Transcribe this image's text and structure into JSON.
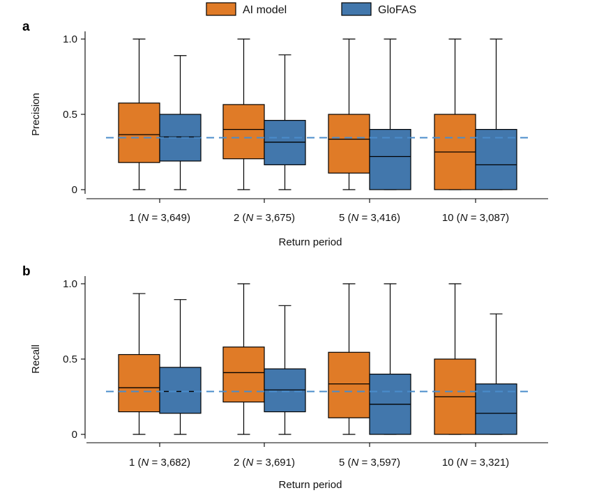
{
  "legend": {
    "items": [
      {
        "label": "AI model",
        "color": "#E07B27"
      },
      {
        "label": "GloFAS",
        "color": "#4277AC"
      }
    ]
  },
  "colors": {
    "ai": "#E07B27",
    "glofas": "#4277AC",
    "reference": "#4A8CCB"
  },
  "chart_data": [
    {
      "type": "box",
      "panel": "a",
      "ylabel": "Precision",
      "xlabel": "Return period",
      "ylim": [
        0,
        1.0
      ],
      "yticks": [
        "0",
        "0.5",
        "1.0"
      ],
      "ytick_values": [
        0,
        0.5,
        1.0
      ],
      "reference_line": 0.345,
      "categories": [
        "1 (N = 3,649)",
        "2 (N = 3,675)",
        "5 (N = 3,416)",
        "10 (N = 3,087)"
      ],
      "category_parts": [
        {
          "pre": "1 (",
          "n": "N",
          "post": " = 3,649)"
        },
        {
          "pre": "2 (",
          "n": "N",
          "post": " = 3,675)"
        },
        {
          "pre": "5 (",
          "n": "N",
          "post": " = 3,416)"
        },
        {
          "pre": "10 (",
          "n": "N",
          "post": " = 3,087)"
        }
      ],
      "series": [
        {
          "name": "AI model",
          "boxes": [
            {
              "whislo": 0,
              "q1": 0.18,
              "med": 0.365,
              "q3": 0.575,
              "whishi": 1.0
            },
            {
              "whislo": 0,
              "q1": 0.205,
              "med": 0.4,
              "q3": 0.565,
              "whishi": 1.0
            },
            {
              "whislo": 0,
              "q1": 0.11,
              "med": 0.335,
              "q3": 0.5,
              "whishi": 1.0
            },
            {
              "whislo": 0,
              "q1": 0,
              "med": 0.25,
              "q3": 0.5,
              "whishi": 1.0
            }
          ]
        },
        {
          "name": "GloFAS",
          "boxes": [
            {
              "whislo": 0,
              "q1": 0.19,
              "med": 0.35,
              "q3": 0.5,
              "whishi": 0.89
            },
            {
              "whislo": 0,
              "q1": 0.165,
              "med": 0.315,
              "q3": 0.46,
              "whishi": 0.895
            },
            {
              "whislo": 0,
              "q1": 0,
              "med": 0.22,
              "q3": 0.4,
              "whishi": 1.0
            },
            {
              "whislo": 0,
              "q1": 0,
              "med": 0.165,
              "q3": 0.4,
              "whishi": 1.0
            }
          ]
        }
      ]
    },
    {
      "type": "box",
      "panel": "b",
      "ylabel": "Recall",
      "xlabel": "Return period",
      "ylim": [
        0,
        1.0
      ],
      "yticks": [
        "0",
        "0.5",
        "1.0"
      ],
      "ytick_values": [
        0,
        0.5,
        1.0
      ],
      "reference_line": 0.285,
      "categories": [
        "1 (N = 3,682)",
        "2 (N = 3,691)",
        "5 (N = 3,597)",
        "10 (N = 3,321)"
      ],
      "category_parts": [
        {
          "pre": "1 (",
          "n": "N",
          "post": " = 3,682)"
        },
        {
          "pre": "2 (",
          "n": "N",
          "post": " = 3,691)"
        },
        {
          "pre": "5 (",
          "n": "N",
          "post": " = 3,597)"
        },
        {
          "pre": "10 (",
          "n": "N",
          "post": " = 3,321)"
        }
      ],
      "series": [
        {
          "name": "AI model",
          "boxes": [
            {
              "whislo": 0,
              "q1": 0.15,
              "med": 0.31,
              "q3": 0.53,
              "whishi": 0.935
            },
            {
              "whislo": 0,
              "q1": 0.215,
              "med": 0.41,
              "q3": 0.58,
              "whishi": 1.0
            },
            {
              "whislo": 0,
              "q1": 0.11,
              "med": 0.335,
              "q3": 0.545,
              "whishi": 1.0
            },
            {
              "whislo": 0,
              "q1": 0,
              "med": 0.25,
              "q3": 0.5,
              "whishi": 1.0
            }
          ]
        },
        {
          "name": "GloFAS",
          "boxes": [
            {
              "whislo": 0,
              "q1": 0.14,
              "med": 0.285,
              "q3": 0.445,
              "whishi": 0.895
            },
            {
              "whislo": 0,
              "q1": 0.15,
              "med": 0.295,
              "q3": 0.435,
              "whishi": 0.855
            },
            {
              "whislo": 0,
              "q1": 0,
              "med": 0.2,
              "q3": 0.4,
              "whishi": 1.0
            },
            {
              "whislo": 0,
              "q1": 0,
              "med": 0.14,
              "q3": 0.335,
              "whishi": 0.8
            }
          ]
        }
      ]
    }
  ]
}
